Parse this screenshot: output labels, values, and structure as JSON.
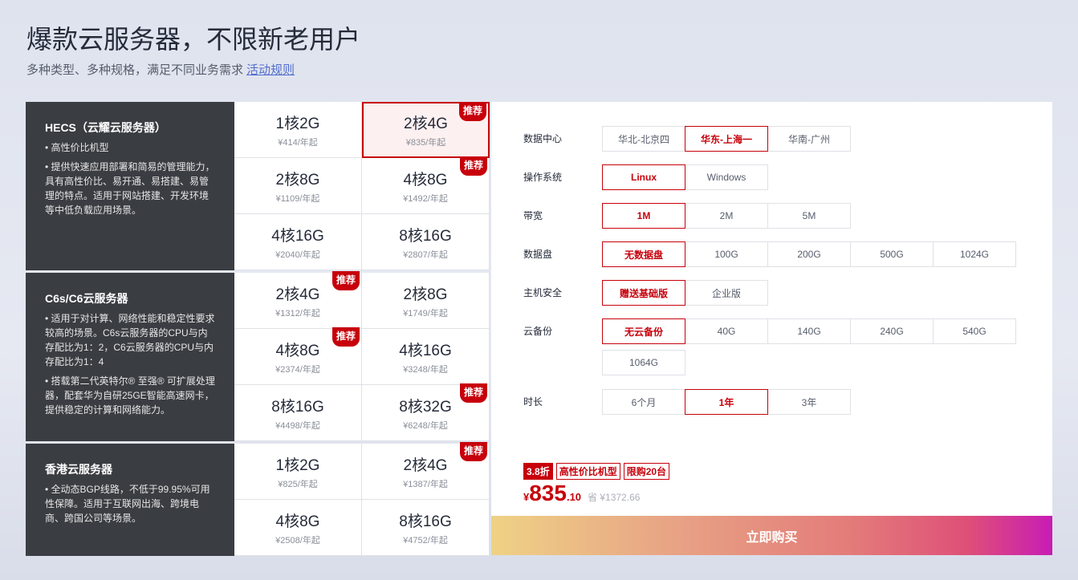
{
  "header": {
    "title": "爆款云服务器，不限新老用户",
    "subtitle": "多种类型、多种规格，满足不同业务需求",
    "rules_link": "活动规则"
  },
  "badge_label": "推荐",
  "sections": [
    {
      "name": "HECS（云耀云服务器）",
      "desc": [
        "• 高性价比机型",
        "• 提供快速应用部署和简易的管理能力，具有高性价比、易开通、易搭建、易管理的特点。适用于网站搭建、开发环境等中低负载应用场景。"
      ],
      "items": [
        {
          "spec": "1核2G",
          "price": "¥414/年起"
        },
        {
          "spec": "2核4G",
          "price": "¥835/年起",
          "recommended": true,
          "selected": true
        },
        {
          "spec": "2核8G",
          "price": "¥1109/年起"
        },
        {
          "spec": "4核8G",
          "price": "¥1492/年起",
          "recommended": true
        },
        {
          "spec": "4核16G",
          "price": "¥2040/年起"
        },
        {
          "spec": "8核16G",
          "price": "¥2807/年起"
        }
      ]
    },
    {
      "name": "C6s/C6云服务器",
      "desc": [
        "• 适用于对计算、网络性能和稳定性要求较高的场景。C6s云服务器的CPU与内存配比为1：2，C6云服务器的CPU与内存配比为1：4",
        "• 搭载第二代英特尔® 至强® 可扩展处理器，配套华为自研25GE智能高速网卡，提供稳定的计算和网络能力。"
      ],
      "items": [
        {
          "spec": "2核4G",
          "price": "¥1312/年起",
          "recommended": true
        },
        {
          "spec": "2核8G",
          "price": "¥1749/年起"
        },
        {
          "spec": "4核8G",
          "price": "¥2374/年起",
          "recommended": true
        },
        {
          "spec": "4核16G",
          "price": "¥3248/年起"
        },
        {
          "spec": "8核16G",
          "price": "¥4498/年起"
        },
        {
          "spec": "8核32G",
          "price": "¥6248/年起",
          "recommended": true
        }
      ]
    },
    {
      "name": "香港云服务器",
      "desc": [
        "• 全动态BGP线路，不低于99.95%可用性保障。适用于互联网出海、跨境电商、跨国公司等场景。"
      ],
      "items": [
        {
          "spec": "1核2G",
          "price": "¥825/年起"
        },
        {
          "spec": "2核4G",
          "price": "¥1387/年起",
          "recommended": true
        },
        {
          "spec": "4核8G",
          "price": "¥2508/年起"
        },
        {
          "spec": "8核16G",
          "price": "¥4752/年起"
        }
      ]
    }
  ],
  "config": [
    {
      "label": "数据中心",
      "options": [
        "华北-北京四",
        "华东-上海一",
        "华南-广州"
      ],
      "selected": 1
    },
    {
      "label": "操作系统",
      "options": [
        "Linux",
        "Windows"
      ],
      "selected": 0
    },
    {
      "label": "带宽",
      "options": [
        "1M",
        "2M",
        "5M"
      ],
      "selected": 0
    },
    {
      "label": "数据盘",
      "options": [
        "无数据盘",
        "100G",
        "200G",
        "500G",
        "1024G"
      ],
      "selected": 0
    },
    {
      "label": "主机安全",
      "options": [
        "赠送基础版",
        "企业版"
      ],
      "selected": 0
    },
    {
      "label": "云备份",
      "options": [
        "无云备份",
        "40G",
        "140G",
        "240G",
        "540G",
        "1064G"
      ],
      "selected": 0
    },
    {
      "label": "时长",
      "options": [
        "6个月",
        "1年",
        "3年"
      ],
      "selected": 1
    }
  ],
  "summary": {
    "tags": [
      "3.8折",
      "高性价比机型",
      "限购20台"
    ],
    "currency": "¥",
    "price_int": "835",
    "price_dec": ".10",
    "save": "省 ¥1372.66",
    "buy_label": "立即购买"
  },
  "colors": {
    "accent": "#c7000b",
    "dark_panel": "#3a3d42"
  }
}
